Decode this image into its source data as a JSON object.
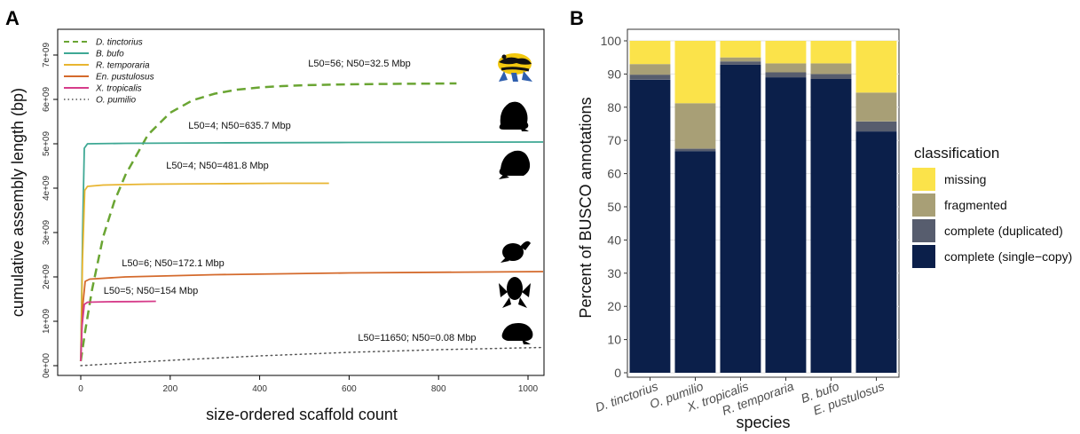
{
  "figure": {
    "panel_a_label": "A",
    "panel_b_label": "B"
  },
  "chart_data": [
    {
      "type": "line",
      "panel": "A",
      "xlabel": "size-ordered scaffold count",
      "ylabel": "cumulative assembly length (bp)",
      "xlim": [
        0,
        1040
      ],
      "ylim": [
        0,
        7000000000
      ],
      "xticks": [
        0,
        200,
        400,
        600,
        800,
        1000
      ],
      "xtick_labels": [
        "0",
        "200",
        "400",
        "600",
        "800",
        "1000"
      ],
      "yticks": [
        0,
        1000000000,
        2000000000,
        3000000000,
        4000000000,
        5000000000,
        6000000000,
        7000000000
      ],
      "ytick_labels": [
        "0e+00",
        "1e+09",
        "2e+09",
        "3e+09",
        "4e+09",
        "5e+09",
        "6e+09",
        "7e+09"
      ],
      "legend_position": "top-left",
      "series": [
        {
          "name": "D. tinctorius",
          "color": "#6aa533",
          "dash": "dashed",
          "x": [
            0,
            10,
            25,
            50,
            75,
            100,
            150,
            200,
            250,
            300,
            350,
            400,
            450,
            500,
            600,
            700,
            840
          ],
          "y": [
            100000000,
            780000000,
            1700000000,
            2900000000,
            3700000000,
            4300000000,
            5200000000,
            5700000000,
            5980000000,
            6130000000,
            6220000000,
            6270000000,
            6300000000,
            6320000000,
            6340000000,
            6350000000,
            6360000000
          ],
          "annotation": "L50=56; N50=32.5 Mbp"
        },
        {
          "name": "B. bufo",
          "color": "#3ea894",
          "dash": "solid",
          "x": [
            0,
            4,
            8,
            15,
            100,
            300,
            600,
            1040
          ],
          "y": [
            100000000,
            2900000000,
            4900000000,
            5000000000,
            5010000000,
            5020000000,
            5030000000,
            5040000000
          ],
          "annotation": "L50=4; N50=635.7 Mbp"
        },
        {
          "name": "R. temporaria",
          "color": "#e8b530",
          "dash": "solid",
          "x": [
            0,
            4,
            9,
            15,
            50,
            150,
            300,
            450,
            555
          ],
          "y": [
            100000000,
            2400000000,
            3950000000,
            4040000000,
            4070000000,
            4090000000,
            4100000000,
            4110000000,
            4110000000
          ],
          "annotation": "L50=4; N50=481.8 Mbp"
        },
        {
          "name": "En. pustulosus",
          "color": "#d46a2c",
          "dash": "solid",
          "x": [
            0,
            4,
            10,
            20,
            100,
            300,
            600,
            1040
          ],
          "y": [
            100000000,
            1300000000,
            1900000000,
            1950000000,
            2000000000,
            2050000000,
            2090000000,
            2120000000
          ],
          "annotation": "L50=6; N50=172.1 Mbp"
        },
        {
          "name": "X. tropicalis",
          "color": "#d63c8a",
          "dash": "solid",
          "x": [
            0,
            3,
            8,
            15,
            60,
            120,
            168
          ],
          "y": [
            100000000,
            900000000,
            1380000000,
            1430000000,
            1440000000,
            1445000000,
            1450000000
          ],
          "annotation": "L50=5; N50=154 Mbp"
        },
        {
          "name": "O. pumilio",
          "color": "#555555",
          "dash": "dotted",
          "x": [
            0,
            200,
            400,
            600,
            800,
            1040
          ],
          "y": [
            0,
            120000000,
            220000000,
            300000000,
            360000000,
            410000000
          ],
          "annotation": "L50=11650; N50=0.08 Mbp"
        }
      ]
    },
    {
      "type": "bar",
      "stacked": true,
      "panel": "B",
      "xlabel": "species",
      "ylabel": "Percent of BUSCO annotations",
      "ylim": [
        0,
        100
      ],
      "yticks": [
        0,
        10,
        20,
        30,
        40,
        50,
        60,
        70,
        80,
        90,
        100
      ],
      "ytick_labels": [
        "0",
        "10",
        "20",
        "30",
        "40",
        "50",
        "60",
        "70",
        "80",
        "90",
        "100"
      ],
      "categories": [
        "D. tinctorius",
        "O. pumilio",
        "X. tropicalis",
        "R. temporaria",
        "B. bufo",
        "E. pustulosus"
      ],
      "legend_title": "classification",
      "legend_position": "right",
      "series": [
        {
          "name": "complete (single−copy)",
          "color": "#0b1f4a",
          "values": [
            88.3,
            66.8,
            92.8,
            89.0,
            88.5,
            72.7
          ]
        },
        {
          "name": "complete (duplicated)",
          "color": "#575d6e",
          "values": [
            1.5,
            0.7,
            1.0,
            1.5,
            1.5,
            3.0
          ]
        },
        {
          "name": "fragmented",
          "color": "#a89f76",
          "values": [
            3.2,
            13.7,
            1.2,
            2.7,
            3.2,
            8.7
          ]
        },
        {
          "name": "missing",
          "color": "#fbe34a",
          "values": [
            7.0,
            18.8,
            5.0,
            6.8,
            6.8,
            15.6
          ]
        }
      ]
    }
  ]
}
